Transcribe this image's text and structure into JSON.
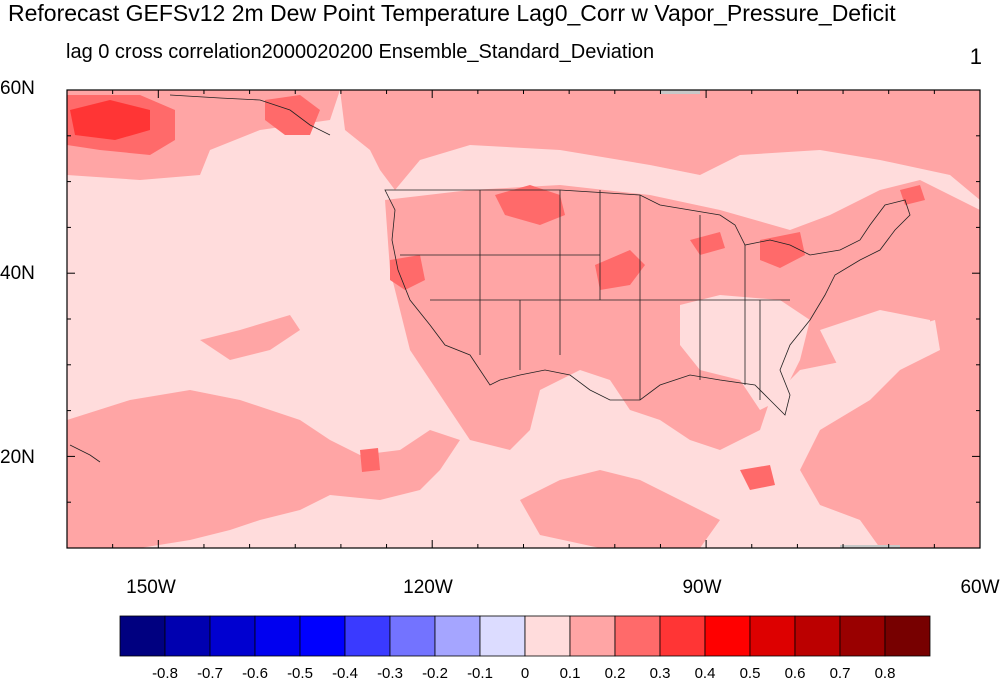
{
  "title": "Reforecast GEFSv12 2m Dew Point Temperature Lag0_Corr w Vapor_Pressure_Deficit",
  "subtitle_left": "lag 0 cross correlation",
  "subtitle_center": "2000020200 Ensemble_Standard_Deviation",
  "subtitle_right": "1",
  "map": {
    "projection": "cylindrical-equidistant",
    "lon_range": [
      -160,
      -60
    ],
    "lat_range": [
      10,
      60
    ],
    "lat_labels": [
      "60N",
      "40N",
      "20N"
    ],
    "lon_labels": [
      "150W",
      "120W",
      "90W",
      "60W"
    ]
  },
  "colorbar": {
    "labels": [
      "-0.8",
      "-0.7",
      "-0.6",
      "-0.5",
      "-0.4",
      "-0.3",
      "-0.2",
      "-0.1",
      "0",
      "0.1",
      "0.2",
      "0.3",
      "0.4",
      "0.5",
      "0.6",
      "0.7",
      "0.8"
    ],
    "colors": [
      "#000080",
      "#0000b0",
      "#0000d0",
      "#0000f0",
      "#0000ff",
      "#3a3aff",
      "#7373ff",
      "#a5a5ff",
      "#dcdcff",
      "#ffdcdc",
      "#ffa5a5",
      "#ff6a6a",
      "#ff3535",
      "#ff0000",
      "#dd0000",
      "#bb0000",
      "#990000",
      "#770000"
    ]
  }
}
